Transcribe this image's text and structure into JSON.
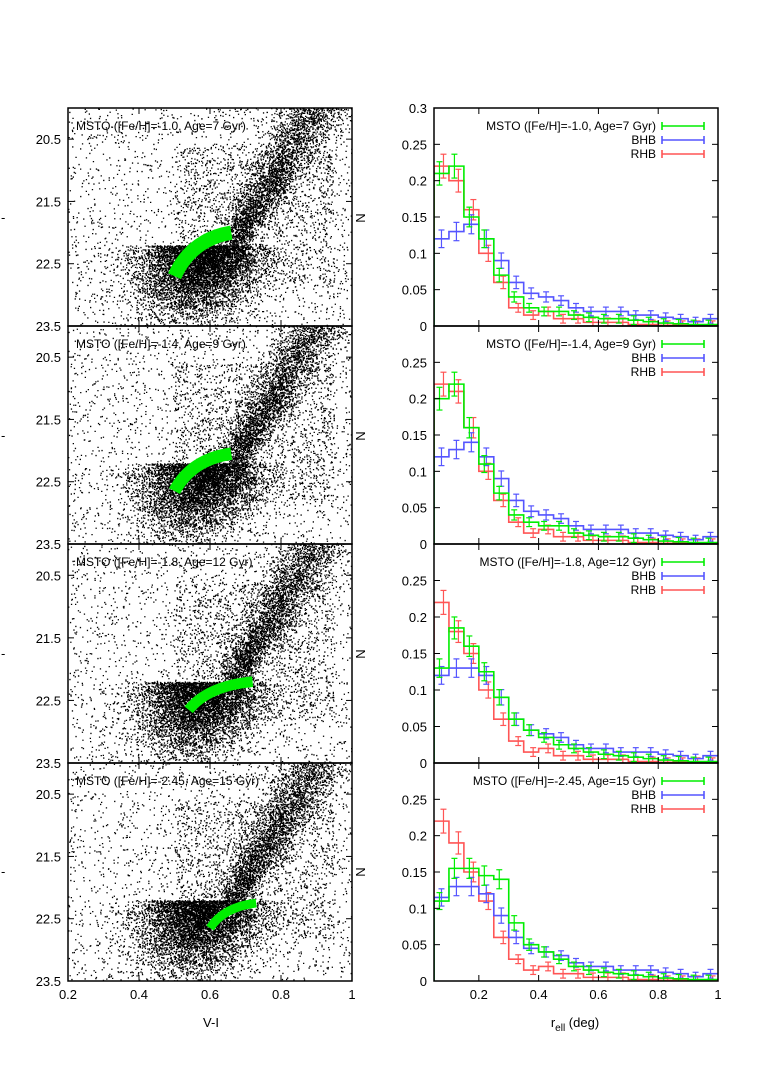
{
  "figure": {
    "left_xlabel": "V-I",
    "right_xlabel_main": "r",
    "right_xlabel_sub": "ell",
    "right_xlabel_unit": " (deg)",
    "right_ylabel": "N",
    "left_side_ticks": [
      "-",
      "-",
      "-",
      "-"
    ]
  },
  "colors": {
    "msto": "#00ee00",
    "bhb": "#5555ff",
    "rhb": "#ff5555",
    "points": "#000000"
  },
  "chart_data": [
    {
      "type": "scatter",
      "title": "MSTO ([Fe/H]=-1.0, Age=7 Gyr)",
      "xlabel": "V-I",
      "ylabel": "",
      "xlim": [
        0.2,
        1.0
      ],
      "ylim": [
        23.5,
        20.0
      ],
      "xticks": [
        "0.2",
        "0.4",
        "0.6",
        "0.8",
        "1"
      ],
      "yticks": [
        "20.5",
        "21.5",
        "22.5",
        "23.5"
      ],
      "msto_box": {
        "x": [
          0.5,
          0.66
        ],
        "y": [
          22.7,
          22.0
        ],
        "width": 0.04
      }
    },
    {
      "type": "scatter",
      "title": "MSTO ([Fe/H]=-1.4, Age=9 Gyr)",
      "xlabel": "V-I",
      "ylabel": "",
      "xlim": [
        0.2,
        1.0
      ],
      "ylim": [
        23.5,
        20.0
      ],
      "xticks": [
        "0.2",
        "0.4",
        "0.6",
        "0.8",
        "1"
      ],
      "yticks": [
        "20.5",
        "21.5",
        "22.5",
        "23.5"
      ],
      "msto_box": {
        "x": [
          0.5,
          0.66
        ],
        "y": [
          22.65,
          22.05
        ],
        "width": 0.035
      }
    },
    {
      "type": "scatter",
      "title": "MSTO ([Fe/H]=-1.8, Age=12 Gyr)",
      "xlabel": "V-I",
      "ylabel": "",
      "xlim": [
        0.2,
        1.0
      ],
      "ylim": [
        23.5,
        20.0
      ],
      "xticks": [
        "0.2",
        "0.4",
        "0.6",
        "0.8",
        "1"
      ],
      "yticks": [
        "20.5",
        "21.5",
        "22.5",
        "23.5"
      ],
      "msto_box": {
        "x": [
          0.54,
          0.72
        ],
        "y": [
          22.65,
          22.2
        ],
        "width": 0.03
      }
    },
    {
      "type": "scatter",
      "title": "MSTO ([Fe/H]=-2.45, Age=15 Gyr)",
      "xlabel": "V-I",
      "ylabel": "",
      "xlim": [
        0.2,
        1.0
      ],
      "ylim": [
        23.5,
        20.0
      ],
      "xticks": [
        "0.2",
        "0.4",
        "0.6",
        "0.8",
        "1"
      ],
      "yticks": [
        "20.5",
        "21.5",
        "22.5",
        "23.5"
      ],
      "msto_box": {
        "x": [
          0.6,
          0.73
        ],
        "y": [
          22.65,
          22.25
        ],
        "width": 0.025
      }
    },
    {
      "type": "line",
      "title": "",
      "xlabel": "r_ell (deg)",
      "ylabel": "N",
      "xlim": [
        0.05,
        1.0
      ],
      "ylim": [
        0,
        0.3
      ],
      "xticks": [
        "0.2",
        "0.4",
        "0.6",
        "0.8",
        "1"
      ],
      "yticks": [
        "0",
        "0.05",
        "0.1",
        "0.15",
        "0.2",
        "0.25",
        "0.3"
      ],
      "x": [
        0.075,
        0.125,
        0.175,
        0.225,
        0.275,
        0.325,
        0.375,
        0.425,
        0.475,
        0.525,
        0.575,
        0.625,
        0.675,
        0.725,
        0.775,
        0.825,
        0.875,
        0.925,
        0.975
      ],
      "series": [
        {
          "name": "MSTO ([Fe/H]=-1.0, Age=7 Gyr)",
          "color": "#00ee00",
          "values": [
            0.21,
            0.22,
            0.15,
            0.12,
            0.07,
            0.04,
            0.025,
            0.02,
            0.02,
            0.015,
            0.012,
            0.01,
            0.01,
            0.008,
            0.006,
            0.004,
            0.003,
            0.002,
            0.002
          ]
        },
        {
          "name": "BHB",
          "color": "#5555ff",
          "values": [
            0.12,
            0.13,
            0.14,
            0.12,
            0.09,
            0.06,
            0.045,
            0.04,
            0.035,
            0.025,
            0.02,
            0.02,
            0.02,
            0.015,
            0.015,
            0.012,
            0.01,
            0.006,
            0.01
          ]
        },
        {
          "name": "RHB",
          "color": "#ff5555",
          "values": [
            0.22,
            0.2,
            0.16,
            0.1,
            0.06,
            0.025,
            0.015,
            0.02,
            0.01,
            0.01,
            0.005,
            0.005,
            0.005,
            0.002,
            0.002,
            0.001,
            0.001,
            0.001,
            0.001
          ]
        }
      ]
    },
    {
      "type": "line",
      "title": "",
      "xlabel": "r_ell (deg)",
      "ylabel": "N",
      "xlim": [
        0.05,
        1.0
      ],
      "ylim": [
        0,
        0.3
      ],
      "xticks": [
        "0.2",
        "0.4",
        "0.6",
        "0.8",
        "1"
      ],
      "yticks": [
        "0",
        "0.05",
        "0.1",
        "0.15",
        "0.2",
        "0.25"
      ],
      "x": [
        0.075,
        0.125,
        0.175,
        0.225,
        0.275,
        0.325,
        0.375,
        0.425,
        0.475,
        0.525,
        0.575,
        0.625,
        0.675,
        0.725,
        0.775,
        0.825,
        0.875,
        0.925,
        0.975
      ],
      "series": [
        {
          "name": "MSTO ([Fe/H]=-1.4, Age=9 Gyr)",
          "color": "#00ee00",
          "values": [
            0.2,
            0.22,
            0.16,
            0.11,
            0.07,
            0.04,
            0.03,
            0.025,
            0.025,
            0.015,
            0.012,
            0.01,
            0.01,
            0.008,
            0.006,
            0.004,
            0.003,
            0.002,
            0.002
          ]
        },
        {
          "name": "BHB",
          "color": "#5555ff",
          "values": [
            0.12,
            0.13,
            0.14,
            0.12,
            0.09,
            0.06,
            0.045,
            0.04,
            0.035,
            0.025,
            0.02,
            0.02,
            0.02,
            0.015,
            0.015,
            0.012,
            0.01,
            0.006,
            0.01
          ]
        },
        {
          "name": "RHB",
          "color": "#ff5555",
          "values": [
            0.22,
            0.21,
            0.16,
            0.1,
            0.06,
            0.03,
            0.015,
            0.02,
            0.01,
            0.01,
            0.005,
            0.005,
            0.005,
            0.002,
            0.002,
            0.001,
            0.001,
            0.001,
            0.001
          ]
        }
      ]
    },
    {
      "type": "line",
      "title": "",
      "xlabel": "r_ell (deg)",
      "ylabel": "N",
      "xlim": [
        0.05,
        1.0
      ],
      "ylim": [
        0,
        0.3
      ],
      "xticks": [
        "0.2",
        "0.4",
        "0.6",
        "0.8",
        "1"
      ],
      "yticks": [
        "0",
        "0.05",
        "0.1",
        "0.15",
        "0.2",
        "0.25"
      ],
      "x": [
        0.075,
        0.125,
        0.175,
        0.225,
        0.275,
        0.325,
        0.375,
        0.425,
        0.475,
        0.525,
        0.575,
        0.625,
        0.675,
        0.725,
        0.775,
        0.825,
        0.875,
        0.925,
        0.975
      ],
      "series": [
        {
          "name": "MSTO ([Fe/H]=-1.8, Age=12 Gyr)",
          "color": "#00ee00",
          "values": [
            0.13,
            0.185,
            0.16,
            0.125,
            0.09,
            0.06,
            0.045,
            0.035,
            0.025,
            0.02,
            0.015,
            0.012,
            0.01,
            0.008,
            0.006,
            0.004,
            0.003,
            0.002,
            0.002
          ]
        },
        {
          "name": "BHB",
          "color": "#5555ff",
          "values": [
            0.12,
            0.13,
            0.13,
            0.12,
            0.09,
            0.06,
            0.045,
            0.04,
            0.035,
            0.025,
            0.02,
            0.02,
            0.015,
            0.015,
            0.015,
            0.012,
            0.01,
            0.006,
            0.01
          ]
        },
        {
          "name": "RHB",
          "color": "#ff5555",
          "values": [
            0.22,
            0.18,
            0.15,
            0.1,
            0.06,
            0.03,
            0.015,
            0.02,
            0.01,
            0.01,
            0.005,
            0.005,
            0.005,
            0.002,
            0.002,
            0.001,
            0.001,
            0.001,
            0.001
          ]
        }
      ]
    },
    {
      "type": "line",
      "title": "",
      "xlabel": "r_ell (deg)",
      "ylabel": "N",
      "xlim": [
        0.05,
        1.0
      ],
      "ylim": [
        0,
        0.3
      ],
      "xticks": [
        "0.2",
        "0.4",
        "0.6",
        "0.8",
        "1"
      ],
      "yticks": [
        "0",
        "0.05",
        "0.1",
        "0.15",
        "0.2",
        "0.25"
      ],
      "x": [
        0.075,
        0.125,
        0.175,
        0.225,
        0.275,
        0.325,
        0.375,
        0.425,
        0.475,
        0.525,
        0.575,
        0.625,
        0.675,
        0.725,
        0.775,
        0.825,
        0.875,
        0.925,
        0.975
      ],
      "series": [
        {
          "name": "MSTO ([Fe/H]=-2.45, Age=15 Gyr)",
          "color": "#00ee00",
          "values": [
            0.11,
            0.155,
            0.155,
            0.145,
            0.14,
            0.08,
            0.05,
            0.04,
            0.03,
            0.02,
            0.015,
            0.012,
            0.01,
            0.008,
            0.006,
            0.004,
            0.003,
            0.002,
            0.002
          ]
        },
        {
          "name": "BHB",
          "color": "#5555ff",
          "values": [
            0.115,
            0.13,
            0.13,
            0.12,
            0.09,
            0.06,
            0.045,
            0.04,
            0.035,
            0.025,
            0.02,
            0.02,
            0.015,
            0.015,
            0.015,
            0.012,
            0.01,
            0.006,
            0.01
          ]
        },
        {
          "name": "RHB",
          "color": "#ff5555",
          "values": [
            0.22,
            0.19,
            0.15,
            0.11,
            0.06,
            0.03,
            0.015,
            0.02,
            0.01,
            0.01,
            0.005,
            0.005,
            0.005,
            0.002,
            0.002,
            0.001,
            0.001,
            0.001,
            0.001
          ]
        }
      ]
    }
  ]
}
